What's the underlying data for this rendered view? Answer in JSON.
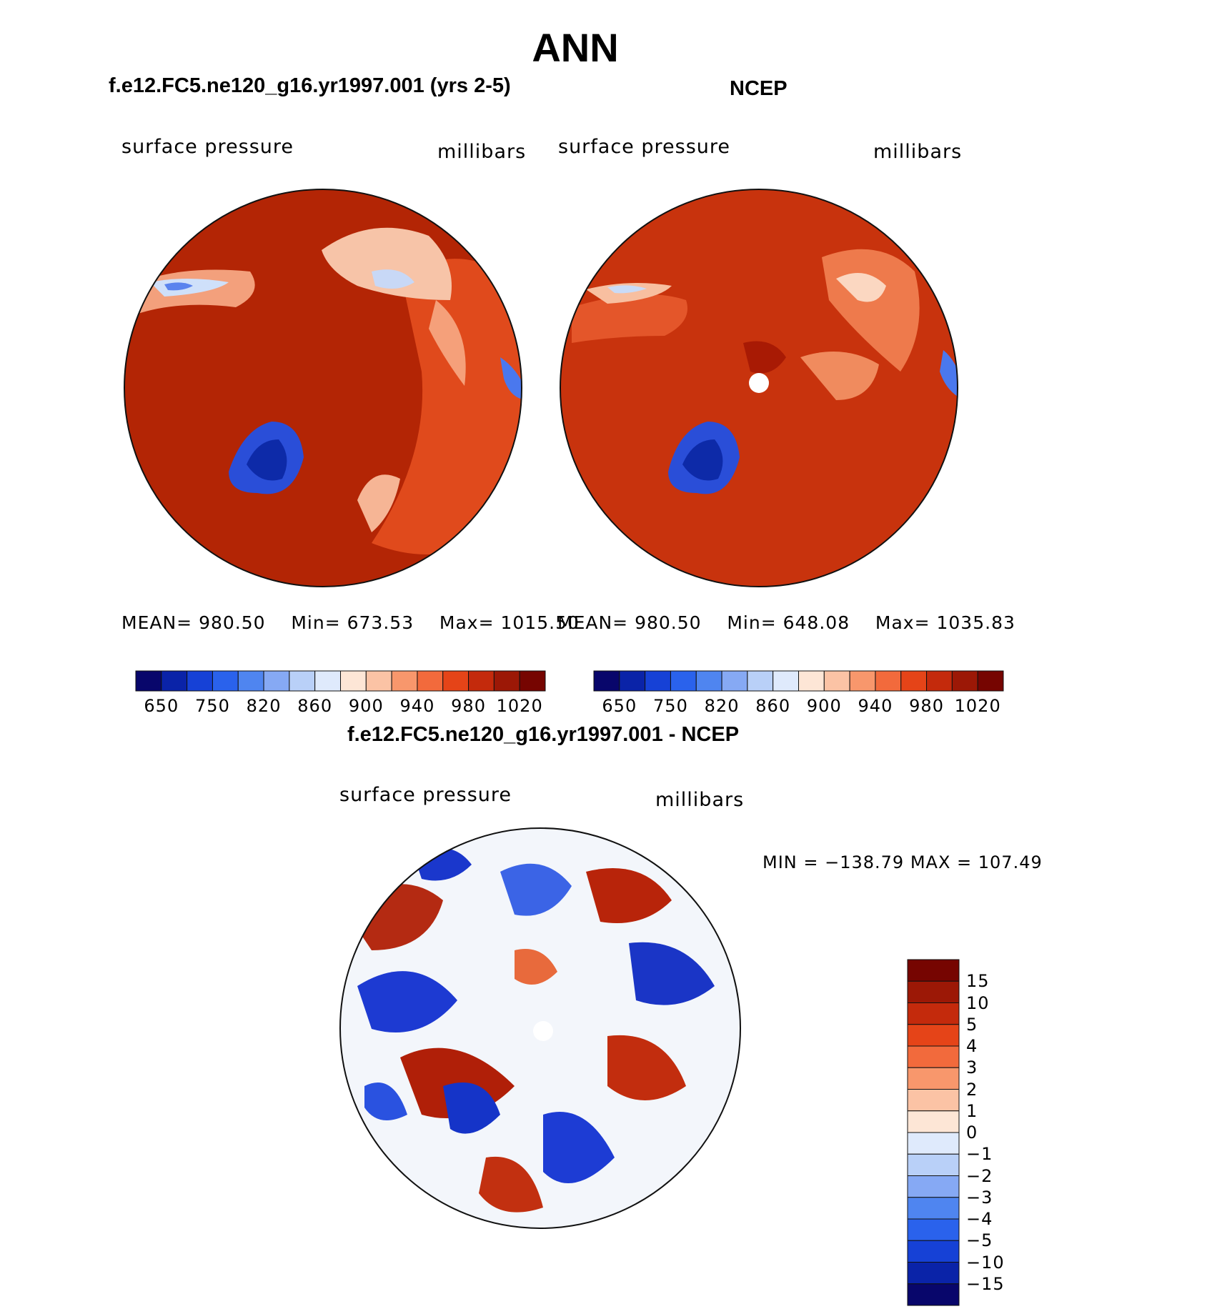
{
  "figure": {
    "title": "ANN",
    "colors": {
      "bg": "#ffffff",
      "coast": "#111111",
      "pole": "#ffffff"
    }
  },
  "panel_model": {
    "title": "f.e12.FC5.ne120_g16.yr1997.001 (yrs 2-5)",
    "left_label": "surface pressure",
    "right_label": "millibars",
    "stats": {
      "mean_label": "MEAN=",
      "mean": "980.50",
      "min_label": "Min=",
      "min": "673.53",
      "max_label": "Max=",
      "max": "1015.50"
    }
  },
  "panel_obs": {
    "title": "NCEP",
    "left_label": "surface pressure",
    "right_label": "millibars",
    "stats": {
      "mean_label": "MEAN=",
      "mean": "980.50",
      "min_label": "Min=",
      "min": "648.08",
      "max_label": "Max=",
      "max": "1035.83"
    }
  },
  "panel_diff": {
    "title": "f.e12.FC5.ne120_g16.yr1997.001 - NCEP",
    "left_label": "surface pressure",
    "right_label": "millibars",
    "minmax_text": "MIN = −138.79 MAX = 107.49"
  },
  "colorbar_abs": {
    "colors": [
      "#08066b",
      "#0a23a8",
      "#1641d6",
      "#2a62ec",
      "#4f85f0",
      "#86a9f4",
      "#b9d0f8",
      "#dfeafc",
      "#fde6d6",
      "#fbc3a5",
      "#f8976c",
      "#f26a3c",
      "#e54418",
      "#c42a0c",
      "#9c1806",
      "#760501"
    ],
    "tick_labels": [
      "650",
      "750",
      "820",
      "860",
      "900",
      "940",
      "980",
      "1020"
    ]
  },
  "colorbar_diff": {
    "colors": [
      "#08066b",
      "#0a23a8",
      "#1641d6",
      "#2a62ec",
      "#4f85f0",
      "#86a9f4",
      "#b9d0f8",
      "#dfeafc",
      "#fde6d6",
      "#fbc3a5",
      "#f8976c",
      "#f26a3c",
      "#e54418",
      "#c42a0c",
      "#9c1806",
      "#760501"
    ],
    "tick_labels": [
      "15",
      "10",
      "5",
      "4",
      "3",
      "2",
      "1",
      "0",
      "−1",
      "−2",
      "−3",
      "−4",
      "−5",
      "−10",
      "−15"
    ]
  }
}
